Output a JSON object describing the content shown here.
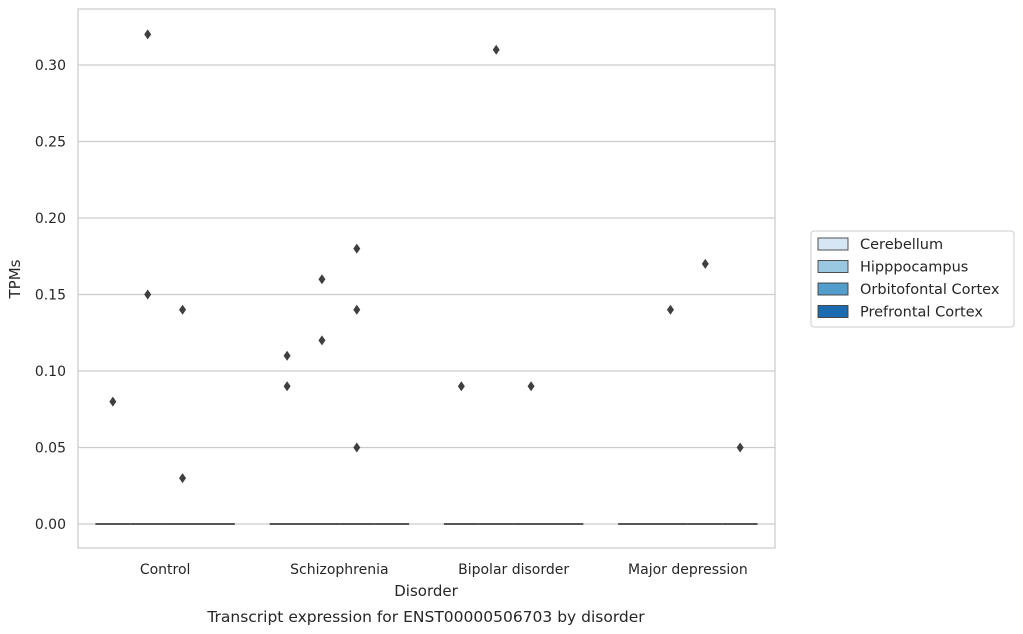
{
  "chart_data": {
    "type": "box",
    "caption": "Transcript expression for ENST00000506703 by disorder",
    "xlabel": "Disorder",
    "ylabel": "TPMs",
    "ylim": [
      -0.016,
      0.336
    ],
    "yticks": [
      0.0,
      0.05,
      0.1,
      0.15,
      0.2,
      0.25,
      0.3
    ],
    "ytick_labels": [
      "0.00",
      "0.05",
      "0.10",
      "0.15",
      "0.20",
      "0.25",
      "0.30"
    ],
    "grid": "horizontal",
    "categories": [
      "Control",
      "Schizophrenia",
      "Bipolar disorder",
      "Major depression"
    ],
    "legend_position": "right",
    "series": [
      {
        "name": "Cerebellum",
        "color": "#d6e6f4",
        "median": [
          0,
          0,
          0,
          0
        ],
        "outliers": [
          [
            0.08
          ],
          [
            0.11,
            0.09
          ],
          [
            0.09
          ],
          []
        ]
      },
      {
        "name": "Hipppocampus",
        "color": "#9ac8e0",
        "median": [
          0,
          0,
          0,
          0
        ],
        "outliers": [
          [
            0.32,
            0.15
          ],
          [
            0.12,
            0.16
          ],
          [
            0.31
          ],
          [
            0.14
          ]
        ]
      },
      {
        "name": "Orbitofontal Cortex",
        "color": "#529dcc",
        "median": [
          0,
          0,
          0,
          0
        ],
        "outliers": [
          [
            0.14,
            0.03
          ],
          [
            0.18,
            0.14,
            0.05
          ],
          [
            0.09
          ],
          [
            0.17
          ]
        ]
      },
      {
        "name": "Prefrontal Cortex",
        "color": "#1c6aaf",
        "median": [
          0,
          0,
          0,
          0
        ],
        "outliers": [
          [],
          [],
          [],
          [
            0.05
          ]
        ]
      }
    ]
  }
}
